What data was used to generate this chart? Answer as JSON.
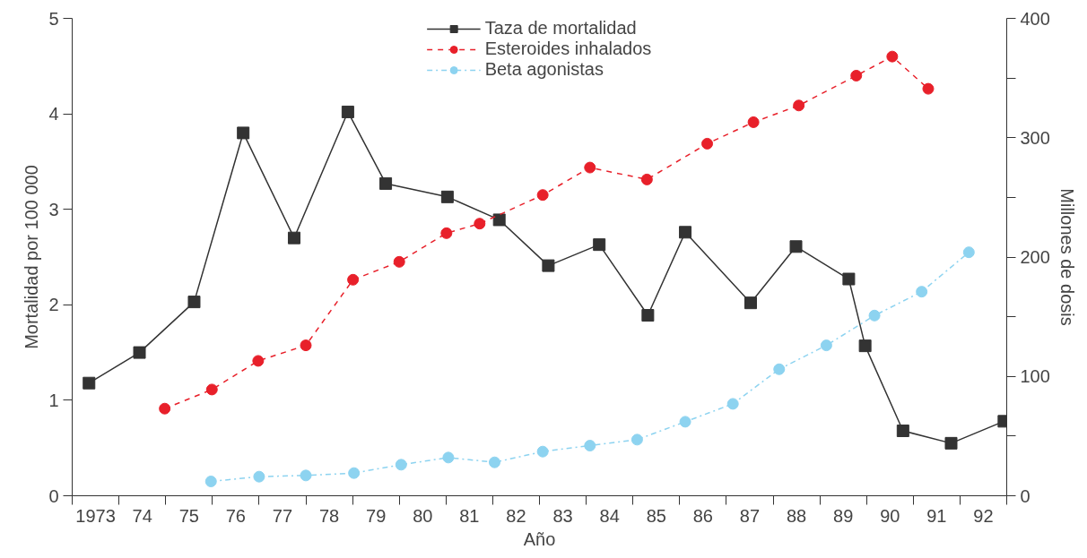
{
  "chart_data": {
    "type": "line",
    "xlabel": "Año",
    "ylabel": "Mortalidad por 100 000",
    "y2label": "Millones de dosis",
    "xlim": [
      1972.5,
      1992.5
    ],
    "xticks": [
      {
        "value": 1973,
        "label": "1973"
      },
      {
        "value": 1974,
        "label": "74"
      },
      {
        "value": 1975,
        "label": "75"
      },
      {
        "value": 1976,
        "label": "76"
      },
      {
        "value": 1977,
        "label": "77"
      },
      {
        "value": 1978,
        "label": "78"
      },
      {
        "value": 1979,
        "label": "79"
      },
      {
        "value": 1980,
        "label": "80"
      },
      {
        "value": 1981,
        "label": "81"
      },
      {
        "value": 1982,
        "label": "82"
      },
      {
        "value": 1983,
        "label": "83"
      },
      {
        "value": 1984,
        "label": "84"
      },
      {
        "value": 1985,
        "label": "85"
      },
      {
        "value": 1986,
        "label": "86"
      },
      {
        "value": 1987,
        "label": "87"
      },
      {
        "value": 1988,
        "label": "88"
      },
      {
        "value": 1989,
        "label": "89"
      },
      {
        "value": 1990,
        "label": "90"
      },
      {
        "value": 1991,
        "label": "91"
      },
      {
        "value": 1992,
        "label": "92"
      },
      {
        "value": 1972.5,
        "label": null
      },
      {
        "value": 1973.5,
        "label": null
      },
      {
        "value": 1974.5,
        "label": null
      },
      {
        "value": 1975.5,
        "label": null
      },
      {
        "value": 1976.5,
        "label": null
      },
      {
        "value": 1977.5,
        "label": null
      },
      {
        "value": 1978.5,
        "label": null
      },
      {
        "value": 1979.5,
        "label": null
      },
      {
        "value": 1980.5,
        "label": null
      },
      {
        "value": 1981.5,
        "label": null
      },
      {
        "value": 1982.5,
        "label": null
      },
      {
        "value": 1983.5,
        "label": null
      },
      {
        "value": 1984.5,
        "label": null
      },
      {
        "value": 1985.5,
        "label": null
      },
      {
        "value": 1986.5,
        "label": null
      },
      {
        "value": 1987.5,
        "label": null
      },
      {
        "value": 1988.5,
        "label": null
      },
      {
        "value": 1989.5,
        "label": null
      },
      {
        "value": 1990.5,
        "label": null
      },
      {
        "value": 1991.5,
        "label": null
      },
      {
        "value": 1992.5,
        "label": null
      }
    ],
    "ylim": [
      0,
      5
    ],
    "yticks": [
      0,
      1,
      2,
      3,
      4,
      5
    ],
    "y2lim": [
      0,
      400
    ],
    "y2ticks": [
      0,
      100,
      200,
      300,
      400,
      {
        "value": 50,
        "label": null
      },
      {
        "value": 150,
        "label": null
      },
      {
        "value": 250,
        "label": null
      },
      {
        "value": 350,
        "label": null
      }
    ],
    "grid": false,
    "legend": "top",
    "series": [
      {
        "name": "Taza de mortalidad",
        "color": "#333333",
        "marker": "square",
        "line_style": "solid",
        "x": [
          1972.86,
          1973.94,
          1975.11,
          1976.16,
          1977.25,
          1978.4,
          1979.21,
          1980.53,
          1981.64,
          1982.69,
          1983.78,
          1984.82,
          1985.62,
          1987.02,
          1987.99,
          1989.12,
          1989.47,
          1990.28,
          1991.31,
          1992.44
        ],
        "values": [
          1.18,
          1.5,
          2.03,
          3.8,
          2.7,
          4.02,
          3.27,
          3.13,
          2.89,
          2.41,
          2.63,
          1.89,
          2.76,
          2.02,
          2.61,
          2.27,
          1.57,
          0.68,
          0.55,
          0.78
        ]
      },
      {
        "name": "Esteroides inhalados",
        "color": "#e8202a",
        "marker": "circle",
        "line_style": "dashed",
        "axis": "y2",
        "x": [
          1974.48,
          1975.49,
          1976.48,
          1977.5,
          1978.51,
          1979.5,
          1980.51,
          1981.22,
          1982.57,
          1983.58,
          1984.8,
          1986.09,
          1987.08,
          1988.05,
          1989.28,
          1990.05,
          1990.82
        ],
        "values": [
          73,
          89,
          113,
          126,
          181,
          196,
          220,
          228,
          252,
          275,
          265,
          295,
          313,
          327,
          352,
          368,
          341
        ]
      },
      {
        "name": "Beta agonistas",
        "color": "#8dd3f0",
        "marker": "circle",
        "line_style": "dashdot",
        "axis": "y2",
        "x": [
          1975.47,
          1976.5,
          1977.5,
          1978.53,
          1979.54,
          1980.55,
          1981.54,
          1982.57,
          1983.58,
          1984.59,
          1985.62,
          1986.64,
          1987.63,
          1988.64,
          1989.67,
          1990.68,
          1991.69
        ],
        "values": [
          12,
          16,
          17,
          19,
          26,
          32,
          28,
          37,
          42,
          47,
          62,
          77,
          106,
          126,
          151,
          171,
          204
        ]
      }
    ]
  }
}
